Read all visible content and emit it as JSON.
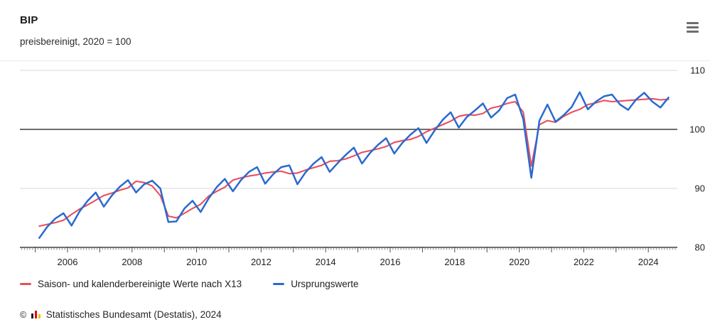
{
  "header": {
    "title": "BIP",
    "subtitle": "preisbereinigt, 2020 = 100"
  },
  "menu": {
    "icon": "hamburger-icon",
    "tooltip": "Menü"
  },
  "chart_data": {
    "type": "line",
    "title": "BIP",
    "subtitle": "preisbereinigt, 2020 = 100",
    "frequency": "quarterly",
    "x_start": "2005 Q1",
    "x_end": "2024 Q3",
    "x_axis": {
      "labeled_years": [
        2006,
        2008,
        2010,
        2012,
        2014,
        2016,
        2018,
        2020,
        2022,
        2024
      ],
      "year_tick_start": 2005,
      "year_tick_end": 2024,
      "minor_ticks": "monthly"
    },
    "y_axis": {
      "ticks": [
        80,
        90,
        100,
        110
      ],
      "range": [
        80,
        110
      ],
      "baseline": 100,
      "position": "right"
    },
    "grid": "horizontal-only",
    "legend_position": "bottom",
    "series": [
      {
        "name": "Saison- und kalenderbereinigte Werte nach X13",
        "color": "#e84f5e",
        "values": [
          83.6,
          83.9,
          84.2,
          84.6,
          85.6,
          86.5,
          87.2,
          88.0,
          88.8,
          89.2,
          89.7,
          90.1,
          91.2,
          91.0,
          90.4,
          88.8,
          85.3,
          85.0,
          85.8,
          86.6,
          87.3,
          88.7,
          89.5,
          90.2,
          91.4,
          91.8,
          92.1,
          92.3,
          92.6,
          92.8,
          92.9,
          92.5,
          92.6,
          93.1,
          93.5,
          93.9,
          94.6,
          94.7,
          95.0,
          95.5,
          96.1,
          96.4,
          96.7,
          97.1,
          97.8,
          98.1,
          98.3,
          98.8,
          99.6,
          100.2,
          100.8,
          101.4,
          102.2,
          102.5,
          102.4,
          102.7,
          103.6,
          103.9,
          104.4,
          104.7,
          102.9,
          93.8,
          100.8,
          101.5,
          101.2,
          102.2,
          102.9,
          103.4,
          104.2,
          104.5,
          104.9,
          104.7,
          104.8,
          104.9,
          105.0,
          105.1,
          105.2,
          105.0,
          105.1
        ]
      },
      {
        "name": "Ursprungswerte",
        "color": "#2b6ace",
        "values": [
          81.6,
          83.5,
          84.9,
          85.8,
          83.7,
          86.1,
          87.9,
          89.3,
          86.9,
          88.8,
          90.3,
          91.4,
          89.3,
          90.7,
          91.3,
          90.0,
          84.3,
          84.4,
          86.6,
          87.9,
          86.0,
          88.3,
          90.2,
          91.6,
          89.5,
          91.4,
          92.8,
          93.6,
          90.8,
          92.4,
          93.6,
          93.9,
          90.7,
          92.7,
          94.2,
          95.3,
          92.8,
          94.3,
          95.7,
          96.9,
          94.2,
          96.0,
          97.4,
          98.5,
          95.9,
          97.7,
          99.1,
          100.2,
          97.7,
          99.8,
          101.6,
          102.9,
          100.3,
          102.1,
          103.2,
          104.4,
          102.0,
          103.2,
          105.3,
          105.9,
          101.7,
          91.8,
          101.5,
          104.2,
          101.3,
          102.4,
          103.8,
          106.3,
          103.4,
          104.7,
          105.6,
          105.9,
          104.2,
          103.3,
          105.1,
          106.2,
          104.7,
          103.7,
          105.4
        ]
      }
    ]
  },
  "legend": {
    "items": [
      {
        "label": "Saison- und kalenderbereinigte Werte nach X13",
        "color": "#e84f5e"
      },
      {
        "label": "Ursprungswerte",
        "color": "#2b6ace"
      }
    ]
  },
  "footer": {
    "copyright": "©",
    "source": "Statistisches Bundesamt (Destatis), 2024",
    "logo_icon": "destatis-bars-icon",
    "logo_colors": [
      "#1a1a1a",
      "#e30613",
      "#f5bd00"
    ]
  },
  "colors": {
    "grid": "#d9d9d9",
    "baseline_100": "#3c3c3c",
    "axis": "#3c3c3c",
    "tick_minor": "#8c8c8c",
    "tick_year": "#4a4a4a",
    "label": "#1f1f1f"
  }
}
